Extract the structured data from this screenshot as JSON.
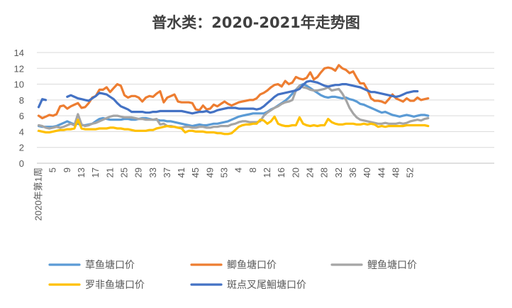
{
  "chart_data": {
    "type": "line",
    "title": "普水类：2020-2021年走势图",
    "xlabel": "",
    "ylabel": "",
    "ylim": [
      0,
      14
    ],
    "yticks": [
      0,
      2,
      4,
      6,
      8,
      10,
      12,
      14
    ],
    "xlim": [
      1,
      52
    ],
    "x_tick_labels": [
      "2020年第1周",
      "5",
      "9",
      "13",
      "17",
      "21",
      "25",
      "29",
      "33",
      "37",
      "41",
      "45",
      "49",
      "53",
      "4",
      "8",
      "12",
      "16",
      "20",
      "24",
      "28",
      "32",
      "36",
      "40",
      "44",
      "48",
      "52"
    ],
    "grid": "horizontal",
    "legend_position": "bottom",
    "series": [
      {
        "name": "草鱼塘口价",
        "color": "#5B9BD5",
        "values": [
          4.7,
          4.6,
          4.6,
          4.6,
          4.6,
          4.7,
          4.9,
          5.1,
          5.3,
          5.1,
          4.9,
          5.0,
          4.8,
          4.8,
          4.9,
          5.0,
          5.3,
          5.6,
          5.7,
          5.6,
          5.5,
          5.5,
          5.5,
          5.5,
          5.6,
          5.6,
          5.5,
          5.5,
          5.6,
          5.7,
          5.7,
          5.6,
          5.5,
          5.5,
          5.4,
          5.4,
          5.3,
          5.3,
          5.2,
          5.1,
          5.0,
          4.9,
          4.8,
          4.7,
          4.8,
          4.9,
          4.8,
          4.8,
          4.9,
          5.0,
          5.0,
          5.1,
          5.2,
          5.3,
          5.5,
          5.7,
          5.9,
          6.0,
          6.1,
          6.2,
          6.3,
          6.3,
          6.3,
          6.3,
          6.5,
          6.8,
          7.0,
          7.3,
          7.6,
          7.9,
          8.3,
          8.8,
          9.3,
          9.8,
          10.0,
          9.8,
          9.5,
          9.2,
          8.9,
          8.6,
          8.4,
          8.3,
          8.4,
          8.4,
          8.3,
          8.2,
          8.3,
          8.1,
          8.0,
          7.8,
          7.5,
          7.4,
          7.2,
          7.0,
          6.8,
          6.6,
          6.4,
          6.5,
          6.3,
          6.1,
          6.0,
          5.9,
          6.0,
          6.1,
          6.0,
          5.9,
          6.0,
          6.1,
          6.1,
          6.0
        ]
      },
      {
        "name": "鲫鱼塘口价",
        "color": "#ED7D31",
        "values": [
          6.0,
          5.7,
          5.9,
          6.1,
          6.0,
          6.2,
          7.2,
          7.3,
          6.9,
          7.2,
          7.4,
          7.6,
          7.0,
          7.1,
          7.6,
          8.3,
          8.5,
          9.3,
          9.3,
          9.6,
          9.0,
          9.5,
          10.0,
          9.8,
          8.6,
          8.3,
          8.5,
          8.5,
          8.3,
          7.8,
          8.3,
          8.5,
          8.4,
          8.8,
          9.1,
          7.7,
          8.3,
          8.5,
          8.7,
          7.8,
          7.7,
          7.7,
          7.7,
          7.6,
          6.8,
          6.7,
          7.3,
          6.8,
          6.9,
          7.4,
          7.2,
          7.5,
          7.8,
          7.5,
          7.3,
          7.5,
          7.7,
          7.8,
          7.9,
          8.0,
          8.0,
          8.2,
          8.7,
          8.9,
          9.2,
          9.6,
          9.9,
          10.0,
          9.7,
          10.4,
          10.0,
          10.2,
          10.9,
          10.7,
          10.6,
          10.8,
          11.5,
          10.6,
          10.9,
          11.5,
          12.0,
          12.1,
          12.0,
          11.7,
          12.4,
          12.0,
          11.8,
          11.4,
          11.6,
          10.8,
          10.1,
          10.1,
          9.3,
          8.2,
          7.9,
          7.9,
          7.8,
          7.6,
          8.1,
          8.7,
          8.2,
          8.0,
          7.8,
          8.2,
          7.9,
          7.9,
          8.3,
          8.0,
          8.1,
          8.2
        ]
      },
      {
        "name": "鲤鱼塘口价",
        "color": "#A5A5A5",
        "values": [
          4.8,
          4.7,
          4.5,
          4.4,
          4.5,
          4.6,
          4.5,
          4.6,
          4.8,
          5.0,
          4.8,
          6.2,
          4.9,
          4.7,
          4.8,
          5.0,
          5.1,
          5.3,
          5.5,
          5.7,
          5.9,
          6.0,
          6.0,
          5.9,
          5.8,
          5.8,
          5.8,
          5.7,
          5.6,
          5.6,
          5.5,
          5.5,
          5.5,
          5.6,
          4.9,
          5.0,
          4.7,
          4.7,
          4.6,
          4.5,
          4.5,
          4.6,
          4.6,
          4.5,
          4.5,
          4.6,
          4.6,
          4.5,
          4.5,
          4.6,
          4.6,
          4.7,
          4.7,
          4.7,
          4.9,
          5.0,
          5.2,
          5.3,
          5.3,
          5.2,
          5.2,
          5.2,
          5.3,
          6.0,
          6.4,
          6.7,
          7.0,
          7.2,
          7.5,
          7.7,
          7.8,
          8.0,
          9.2,
          9.8,
          9.6,
          9.5,
          9.3,
          9.2,
          9.2,
          9.3,
          9.4,
          9.6,
          9.2,
          9.3,
          9.4,
          8.8,
          8.0,
          7.0,
          6.3,
          5.8,
          5.5,
          5.4,
          5.3,
          5.2,
          5.1,
          5.0,
          5.0,
          5.1,
          5.0,
          5.0,
          5.0,
          5.1,
          5.0,
          5.1,
          5.3,
          5.4,
          5.5,
          5.4,
          5.6,
          5.7
        ]
      },
      {
        "name": "罗非鱼塘口价",
        "color": "#FFC000",
        "values": [
          4.1,
          4.0,
          3.9,
          3.9,
          4.0,
          4.1,
          4.2,
          4.2,
          4.3,
          4.3,
          4.4,
          5.5,
          4.4,
          4.3,
          4.3,
          4.3,
          4.3,
          4.4,
          4.4,
          4.4,
          4.5,
          4.5,
          4.4,
          4.4,
          4.3,
          4.3,
          4.2,
          4.1,
          4.1,
          4.1,
          4.1,
          4.2,
          4.2,
          4.4,
          4.5,
          4.6,
          4.7,
          4.6,
          4.6,
          4.5,
          4.4,
          3.9,
          4.1,
          4.1,
          4.0,
          4.0,
          4.0,
          3.9,
          3.9,
          3.9,
          3.8,
          3.8,
          3.7,
          3.7,
          3.8,
          4.2,
          4.6,
          4.8,
          4.9,
          4.9,
          5.0,
          5.0,
          5.5,
          5.4,
          5.0,
          5.3,
          5.9,
          5.0,
          4.8,
          4.7,
          4.7,
          4.8,
          4.8,
          5.8,
          5.0,
          4.8,
          4.7,
          4.8,
          4.7,
          4.8,
          4.8,
          5.6,
          5.2,
          5.0,
          4.9,
          4.9,
          5.0,
          5.0,
          5.0,
          4.9,
          4.9,
          5.0,
          4.9,
          5.0,
          4.9,
          4.6,
          4.7,
          4.6,
          4.7,
          4.7,
          4.7,
          4.7,
          4.7,
          4.8,
          4.8,
          4.8,
          4.8,
          4.8,
          4.8,
          4.7
        ]
      },
      {
        "name": "斑点叉尾鮰塘口价",
        "color": "#4472C4",
        "values": [
          7.1,
          8.1,
          8.0,
          null,
          null,
          null,
          null,
          null,
          8.4,
          8.6,
          8.4,
          8.2,
          8.1,
          8.0,
          7.9,
          8.2,
          8.5,
          8.9,
          8.8,
          8.7,
          8.4,
          8.1,
          7.6,
          7.2,
          7.0,
          6.8,
          6.5,
          6.5,
          6.5,
          6.5,
          6.4,
          6.4,
          6.5,
          6.5,
          6.6,
          6.6,
          6.6,
          6.6,
          6.6,
          6.6,
          6.6,
          6.5,
          6.4,
          6.3,
          6.4,
          6.5,
          6.5,
          6.6,
          6.4,
          6.5,
          6.7,
          6.8,
          6.9,
          7.0,
          7.0,
          7.0,
          6.9,
          6.9,
          6.9,
          6.9,
          6.9,
          6.8,
          6.9,
          7.2,
          7.6,
          8.0,
          8.4,
          8.7,
          8.8,
          8.9,
          9.0,
          9.1,
          9.2,
          9.4,
          9.9,
          10.3,
          10.4,
          10.3,
          10.2,
          10.0,
          9.8,
          9.7,
          9.8,
          9.9,
          9.9,
          10.0,
          10.0,
          9.9,
          9.8,
          9.7,
          9.6,
          9.4,
          9.2,
          9.0,
          9.0,
          8.9,
          8.8,
          8.7,
          8.6,
          8.5,
          8.4,
          8.5,
          8.7,
          8.9,
          9.0,
          9.1,
          9.1,
          null,
          null,
          null
        ]
      }
    ]
  }
}
